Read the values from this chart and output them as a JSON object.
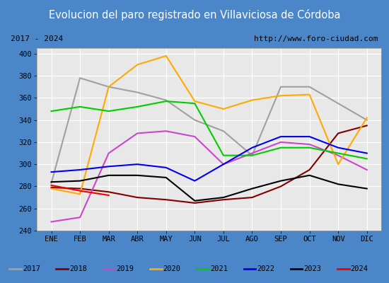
{
  "title": "Evolucion del paro registrado en Villaviciosa de Córdoba",
  "subtitle_left": "2017 - 2024",
  "subtitle_right": "http://www.foro-ciudad.com",
  "months": [
    "ENE",
    "FEB",
    "MAR",
    "ABR",
    "MAY",
    "JUN",
    "JUL",
    "AGO",
    "SEP",
    "OCT",
    "NOV",
    "DIC"
  ],
  "ylim": [
    240,
    405
  ],
  "yticks": [
    240,
    260,
    280,
    300,
    320,
    340,
    360,
    380,
    400
  ],
  "series": {
    "2017": {
      "color": "#a0a0a0",
      "data": [
        283,
        378,
        370,
        365,
        358,
        340,
        330,
        308,
        370,
        370,
        355,
        340
      ]
    },
    "2018": {
      "color": "#800000",
      "data": [
        279,
        278,
        275,
        270,
        268,
        265,
        268,
        270,
        280,
        295,
        328,
        335
      ]
    },
    "2019": {
      "color": "#cc44cc",
      "data": [
        248,
        252,
        310,
        328,
        330,
        325,
        300,
        310,
        320,
        318,
        308,
        295
      ]
    },
    "2020": {
      "color": "#ffaa00",
      "data": [
        278,
        273,
        370,
        390,
        398,
        357,
        350,
        358,
        362,
        363,
        300,
        342
      ]
    },
    "2021": {
      "color": "#00cc00",
      "data": [
        348,
        352,
        348,
        352,
        357,
        355,
        308,
        308,
        315,
        315,
        310,
        305
      ]
    },
    "2022": {
      "color": "#0000ee",
      "data": [
        293,
        295,
        298,
        300,
        297,
        285,
        300,
        315,
        325,
        325,
        315,
        310
      ]
    },
    "2023": {
      "color": "#000000",
      "data": [
        284,
        285,
        290,
        290,
        288,
        267,
        270,
        278,
        285,
        290,
        282,
        278
      ]
    },
    "2024": {
      "color": "#ee0000",
      "data": [
        281,
        276,
        272,
        null,
        null,
        null,
        null,
        null,
        null,
        null,
        null,
        null
      ]
    }
  },
  "title_bg_color": "#4a86c8",
  "title_font_color": "#ffffff",
  "plot_bg_color": "#e8e8e8",
  "border_color": "#4a86c8",
  "subtitle_bg": "#ffffff",
  "legend_bg": "#ffffff"
}
